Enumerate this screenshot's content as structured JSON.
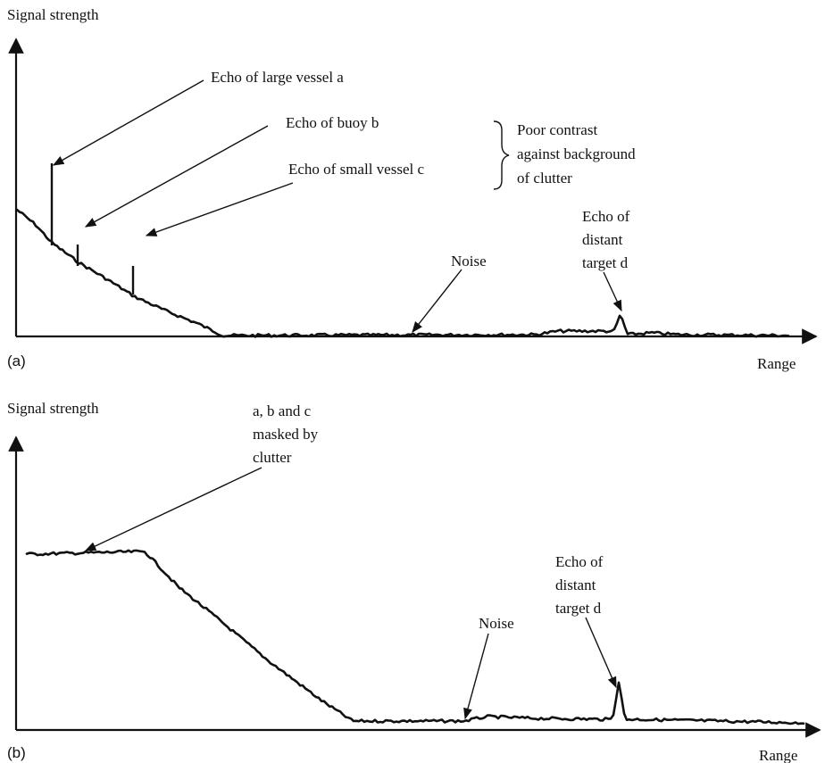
{
  "panel_a": {
    "id": "(a)",
    "ylabel": "Signal strength",
    "xlabel": "Range",
    "annotations": {
      "large_vessel": "Echo of large vessel a",
      "buoy": "Echo of buoy b",
      "small_vessel": "Echo of small vessel c",
      "contrast_line1": "Poor contrast",
      "contrast_line2": "against background",
      "contrast_line3": "of clutter",
      "noise": "Noise",
      "distant_line1": "Echo of",
      "distant_line2": "distant",
      "distant_line3": "target d"
    }
  },
  "panel_b": {
    "id": "(b)",
    "ylabel": "Signal strength",
    "xlabel": "Range",
    "annotations": {
      "masked_line1": "a, b and c",
      "masked_line2": "masked by",
      "masked_line3": "clutter",
      "noise": "Noise",
      "distant_line1": "Echo of",
      "distant_line2": "distant",
      "distant_line3": "target d"
    }
  }
}
